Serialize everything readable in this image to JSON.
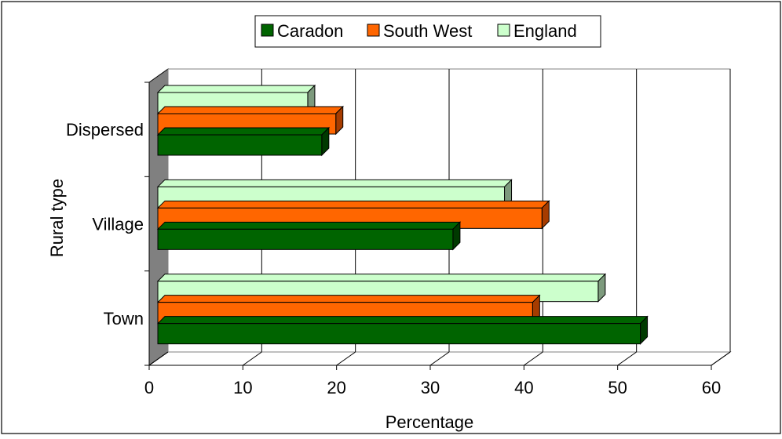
{
  "chart_data": {
    "type": "bar",
    "orientation": "horizontal",
    "title": "",
    "xlabel": "Percentage",
    "ylabel": "Rural type",
    "xlim": [
      0,
      60
    ],
    "x_ticks": [
      "0",
      "10",
      "20",
      "30",
      "40",
      "50",
      "60"
    ],
    "categories": [
      "Dispersed",
      "Village",
      "Town"
    ],
    "series": [
      {
        "name": "Caradon",
        "values": [
          17.5,
          31.5,
          51.5
        ],
        "color": "#006400",
        "side_color": "#003a00"
      },
      {
        "name": "South West",
        "values": [
          19.0,
          41.0,
          40.0
        ],
        "color": "#ff6600",
        "side_color": "#a63c00"
      },
      {
        "name": "England",
        "values": [
          16.0,
          37.0,
          47.0
        ],
        "color": "#ccffcc",
        "side_color": "#7d9a7d"
      }
    ],
    "grid": "vertical",
    "legend_position": "top-center"
  }
}
